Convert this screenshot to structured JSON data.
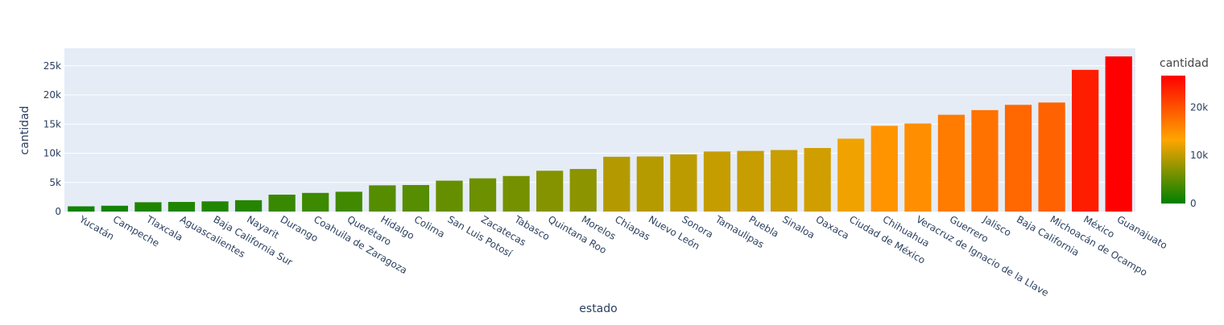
{
  "chart_data": {
    "type": "bar",
    "xlabel": "estado",
    "ylabel": "cantidad",
    "ylim": [
      0,
      28000
    ],
    "y_ticks": [
      0,
      5000,
      10000,
      15000,
      20000,
      25000
    ],
    "y_tick_labels": [
      "0",
      "5k",
      "10k",
      "15k",
      "20k",
      "25k"
    ],
    "categories": [
      "Yucatán",
      "Campeche",
      "Tlaxcala",
      "Aguascalientes",
      "Baja California Sur",
      "Nayarit",
      "Durango",
      "Coahuila de Zaragoza",
      "Querétaro",
      "Hidalgo",
      "Colima",
      "San Luis Potosí",
      "Zacatecas",
      "Tabasco",
      "Quintana Roo",
      "Morelos",
      "Chiapas",
      "Nuevo León",
      "Sonora",
      "Tamaulipas",
      "Puebla",
      "Sinaloa",
      "Oaxaca",
      "Ciudad de México",
      "Chihuahua",
      "Veracruz de Ignacio de la Llave",
      "Guerrero",
      "Jalisco",
      "Baja California",
      "Michoacán de Ocampo",
      "México",
      "Guanajuato"
    ],
    "values": [
      900,
      1000,
      1600,
      1650,
      1750,
      1950,
      2900,
      3200,
      3400,
      4500,
      4550,
      5300,
      5700,
      6100,
      7000,
      7300,
      9400,
      9450,
      9800,
      10300,
      10400,
      10550,
      10900,
      12500,
      14700,
      15100,
      16600,
      17400,
      18300,
      18700,
      24300,
      26600
    ],
    "grid": true,
    "legend": "colorbar right",
    "colorbar": {
      "title": "cantidad",
      "range": [
        0,
        26600
      ],
      "ticks": [
        0,
        10000,
        20000
      ],
      "tick_labels": [
        "0",
        "10k",
        "20k"
      ],
      "colorscale": [
        "#008000",
        "#FFA500",
        "#FF0000"
      ]
    },
    "colors": {
      "plot_bg": "#e5ecf6",
      "grid": "#ffffff",
      "axis_text": "#2a3f5f",
      "title_text": "#444444"
    }
  }
}
